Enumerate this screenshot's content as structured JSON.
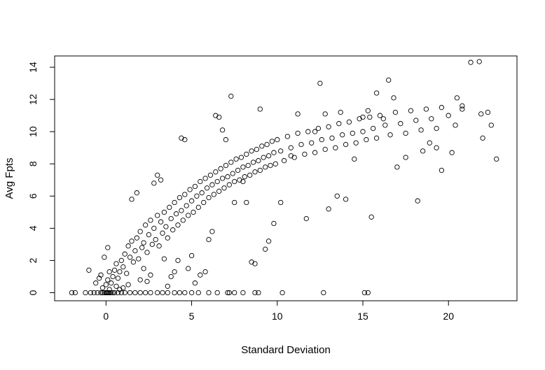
{
  "chart_data": {
    "type": "scatter",
    "title": "",
    "xlabel": "Standard Deviation",
    "ylabel": "Avg Fpts",
    "xlim": [
      -3,
      24
    ],
    "ylim": [
      -0.5,
      14.7
    ],
    "x_ticks": [
      0,
      5,
      10,
      15,
      20
    ],
    "y_ticks": [
      0,
      2,
      4,
      6,
      8,
      10,
      12,
      14
    ],
    "x_tick_labels": [
      "0",
      "5",
      "10",
      "15",
      "20"
    ],
    "y_tick_labels": [
      "0",
      "2",
      "4",
      "6",
      "8",
      "10",
      "12",
      "14"
    ],
    "grid": false,
    "legend": "none",
    "marker": "open-circle",
    "marker_color": "#000000",
    "points": [
      [
        -2.0,
        0
      ],
      [
        -1.8,
        0
      ],
      [
        -1.2,
        0
      ],
      [
        -0.9,
        0
      ],
      [
        -0.7,
        0
      ],
      [
        -0.5,
        0
      ],
      [
        -0.3,
        0
      ],
      [
        -0.2,
        0
      ],
      [
        -0.1,
        0
      ],
      [
        0.0,
        0
      ],
      [
        0.05,
        0
      ],
      [
        0.1,
        0
      ],
      [
        0.15,
        0
      ],
      [
        0.2,
        0
      ],
      [
        0.3,
        0
      ],
      [
        0.4,
        0
      ],
      [
        0.5,
        0
      ],
      [
        0.7,
        0
      ],
      [
        0.9,
        0
      ],
      [
        1.1,
        0
      ],
      [
        1.4,
        0
      ],
      [
        1.7,
        0
      ],
      [
        2.0,
        0
      ],
      [
        2.3,
        0
      ],
      [
        2.6,
        0
      ],
      [
        3.0,
        0
      ],
      [
        3.3,
        0
      ],
      [
        3.6,
        0
      ],
      [
        4.0,
        0
      ],
      [
        4.3,
        0
      ],
      [
        4.6,
        0
      ],
      [
        5.0,
        0
      ],
      [
        5.4,
        0
      ],
      [
        6.0,
        0
      ],
      [
        6.5,
        0
      ],
      [
        7.1,
        0
      ],
      [
        7.2,
        0
      ],
      [
        7.5,
        0
      ],
      [
        8.0,
        0
      ],
      [
        8.7,
        0
      ],
      [
        8.9,
        0
      ],
      [
        10.3,
        0
      ],
      [
        12.7,
        0
      ],
      [
        15.1,
        0
      ],
      [
        15.3,
        0
      ],
      [
        -1.0,
        1.4
      ],
      [
        -0.6,
        0.6
      ],
      [
        -0.4,
        0.9
      ],
      [
        -0.3,
        1.1
      ],
      [
        -0.2,
        0.3
      ],
      [
        0.1,
        2.8
      ],
      [
        -0.1,
        2.2
      ],
      [
        0.2,
        1.3
      ],
      [
        0.0,
        0.5
      ],
      [
        0.1,
        0.8
      ],
      [
        0.2,
        0.2
      ],
      [
        0.3,
        0.6
      ],
      [
        0.4,
        1.0
      ],
      [
        0.5,
        1.4
      ],
      [
        0.6,
        1.8
      ],
      [
        0.7,
        0.9
      ],
      [
        0.8,
        1.3
      ],
      [
        0.9,
        2.0
      ],
      [
        1.0,
        1.6
      ],
      [
        1.1,
        2.4
      ],
      [
        1.2,
        1.2
      ],
      [
        1.3,
        2.9
      ],
      [
        1.4,
        2.2
      ],
      [
        1.5,
        3.2
      ],
      [
        1.6,
        1.9
      ],
      [
        1.7,
        2.6
      ],
      [
        1.8,
        3.4
      ],
      [
        1.9,
        2.1
      ],
      [
        2.0,
        3.8
      ],
      [
        2.1,
        2.8
      ],
      [
        2.2,
        3.1
      ],
      [
        2.3,
        4.2
      ],
      [
        2.4,
        2.5
      ],
      [
        2.5,
        3.6
      ],
      [
        2.6,
        4.5
      ],
      [
        2.7,
        3.0
      ],
      [
        2.8,
        4.0
      ],
      [
        2.9,
        3.3
      ],
      [
        3.0,
        4.8
      ],
      [
        3.1,
        2.9
      ],
      [
        3.2,
        4.4
      ],
      [
        3.3,
        3.7
      ],
      [
        3.4,
        5.0
      ],
      [
        3.5,
        4.1
      ],
      [
        3.6,
        3.4
      ],
      [
        3.7,
        5.3
      ],
      [
        3.8,
        4.6
      ],
      [
        3.9,
        3.9
      ],
      [
        4.0,
        5.6
      ],
      [
        4.1,
        4.9
      ],
      [
        4.2,
        4.2
      ],
      [
        4.3,
        5.9
      ],
      [
        4.4,
        5.1
      ],
      [
        4.5,
        4.5
      ],
      [
        4.6,
        6.1
      ],
      [
        4.7,
        5.4
      ],
      [
        4.8,
        4.8
      ],
      [
        4.9,
        6.4
      ],
      [
        5.0,
        5.7
      ],
      [
        5.1,
        5.0
      ],
      [
        5.2,
        6.6
      ],
      [
        5.3,
        6.0
      ],
      [
        5.4,
        5.3
      ],
      [
        5.5,
        6.9
      ],
      [
        5.6,
        6.2
      ],
      [
        5.7,
        5.6
      ],
      [
        5.8,
        7.1
      ],
      [
        5.9,
        6.5
      ],
      [
        6.0,
        5.9
      ],
      [
        6.1,
        7.3
      ],
      [
        6.2,
        6.7
      ],
      [
        6.3,
        6.1
      ],
      [
        6.4,
        7.5
      ],
      [
        6.5,
        6.9
      ],
      [
        6.6,
        6.3
      ],
      [
        6.7,
        7.7
      ],
      [
        6.8,
        7.1
      ],
      [
        6.9,
        6.5
      ],
      [
        7.0,
        7.9
      ],
      [
        7.1,
        7.2
      ],
      [
        7.2,
        6.7
      ],
      [
        7.3,
        8.1
      ],
      [
        7.4,
        7.4
      ],
      [
        7.5,
        6.9
      ],
      [
        7.6,
        8.3
      ],
      [
        7.7,
        7.6
      ],
      [
        7.8,
        7.0
      ],
      [
        7.9,
        8.4
      ],
      [
        8.0,
        7.8
      ],
      [
        8.1,
        7.2
      ],
      [
        8.2,
        8.6
      ],
      [
        8.3,
        7.9
      ],
      [
        8.4,
        7.3
      ],
      [
        8.5,
        8.8
      ],
      [
        8.6,
        8.1
      ],
      [
        8.7,
        7.5
      ],
      [
        8.8,
        8.9
      ],
      [
        8.9,
        8.2
      ],
      [
        9.0,
        7.6
      ],
      [
        9.1,
        9.1
      ],
      [
        9.2,
        8.4
      ],
      [
        9.3,
        7.8
      ],
      [
        9.4,
        9.2
      ],
      [
        9.5,
        8.5
      ],
      [
        9.6,
        7.9
      ],
      [
        9.7,
        9.4
      ],
      [
        9.8,
        8.7
      ],
      [
        9.9,
        8.0
      ],
      [
        10.0,
        9.5
      ],
      [
        10.2,
        8.8
      ],
      [
        10.4,
        8.2
      ],
      [
        10.6,
        9.7
      ],
      [
        10.8,
        9.0
      ],
      [
        11.0,
        8.4
      ],
      [
        11.2,
        9.9
      ],
      [
        11.4,
        9.2
      ],
      [
        11.6,
        8.6
      ],
      [
        11.8,
        10.0
      ],
      [
        12.0,
        9.3
      ],
      [
        12.2,
        8.7
      ],
      [
        12.4,
        10.2
      ],
      [
        12.6,
        9.5
      ],
      [
        12.8,
        8.9
      ],
      [
        13.0,
        10.3
      ],
      [
        13.2,
        9.6
      ],
      [
        13.4,
        9.0
      ],
      [
        13.6,
        10.5
      ],
      [
        13.8,
        9.8
      ],
      [
        14.0,
        9.2
      ],
      [
        14.2,
        10.6
      ],
      [
        14.4,
        9.9
      ],
      [
        14.6,
        9.3
      ],
      [
        14.8,
        10.8
      ],
      [
        15.0,
        10.0
      ],
      [
        15.2,
        9.5
      ],
      [
        15.4,
        10.9
      ],
      [
        15.6,
        10.2
      ],
      [
        15.8,
        9.6
      ],
      [
        16.0,
        11.0
      ],
      [
        16.3,
        10.4
      ],
      [
        16.6,
        9.8
      ],
      [
        16.9,
        11.2
      ],
      [
        17.2,
        10.5
      ],
      [
        17.5,
        9.9
      ],
      [
        17.8,
        11.3
      ],
      [
        18.1,
        10.7
      ],
      [
        18.4,
        10.1
      ],
      [
        18.7,
        11.4
      ],
      [
        19.0,
        10.8
      ],
      [
        19.3,
        10.2
      ],
      [
        19.6,
        11.5
      ],
      [
        20.0,
        11.0
      ],
      [
        20.4,
        10.4
      ],
      [
        20.8,
        11.6
      ],
      [
        21.3,
        14.3
      ],
      [
        21.8,
        14.35
      ],
      [
        21.9,
        11.1
      ],
      [
        22.0,
        9.6
      ],
      [
        22.3,
        11.2
      ],
      [
        22.5,
        10.4
      ],
      [
        22.8,
        8.3
      ],
      [
        20.8,
        11.4
      ],
      [
        20.5,
        12.1
      ],
      [
        20.2,
        8.7
      ],
      [
        19.6,
        7.6
      ],
      [
        19.3,
        9.0
      ],
      [
        18.9,
        9.3
      ],
      [
        18.5,
        8.8
      ],
      [
        18.2,
        5.7
      ],
      [
        17.5,
        8.4
      ],
      [
        17.0,
        7.8
      ],
      [
        16.8,
        12.1
      ],
      [
        16.5,
        13.2
      ],
      [
        16.2,
        10.8
      ],
      [
        15.8,
        12.4
      ],
      [
        15.5,
        4.7
      ],
      [
        15.3,
        11.3
      ],
      [
        15.0,
        10.9
      ],
      [
        14.5,
        8.3
      ],
      [
        14.0,
        5.8
      ],
      [
        13.7,
        11.2
      ],
      [
        13.5,
        6.0
      ],
      [
        13.0,
        5.2
      ],
      [
        12.8,
        11.1
      ],
      [
        12.5,
        13.0
      ],
      [
        12.2,
        10.0
      ],
      [
        11.7,
        4.6
      ],
      [
        11.2,
        11.1
      ],
      [
        10.8,
        8.5
      ],
      [
        10.2,
        5.6
      ],
      [
        9.8,
        4.3
      ],
      [
        9.5,
        3.2
      ],
      [
        9.3,
        2.7
      ],
      [
        9.0,
        11.4
      ],
      [
        8.7,
        1.8
      ],
      [
        8.5,
        1.9
      ],
      [
        8.2,
        5.6
      ],
      [
        8.0,
        6.9
      ],
      [
        7.5,
        5.6
      ],
      [
        7.3,
        12.2
      ],
      [
        7.0,
        9.5
      ],
      [
        6.8,
        10.1
      ],
      [
        6.6,
        10.9
      ],
      [
        6.4,
        11.0
      ],
      [
        6.2,
        3.8
      ],
      [
        6.0,
        3.3
      ],
      [
        5.8,
        1.3
      ],
      [
        5.5,
        1.1
      ],
      [
        5.2,
        0.6
      ],
      [
        5.0,
        2.3
      ],
      [
        4.8,
        1.5
      ],
      [
        4.6,
        9.5
      ],
      [
        4.4,
        9.6
      ],
      [
        4.2,
        2.0
      ],
      [
        4.0,
        1.3
      ],
      [
        3.8,
        1.0
      ],
      [
        3.6,
        0.4
      ],
      [
        3.4,
        2.1
      ],
      [
        3.2,
        7.0
      ],
      [
        3.0,
        7.3
      ],
      [
        2.8,
        6.8
      ],
      [
        2.6,
        1.1
      ],
      [
        2.4,
        0.7
      ],
      [
        2.2,
        1.5
      ],
      [
        2.0,
        0.8
      ],
      [
        1.8,
        6.2
      ],
      [
        1.5,
        5.8
      ],
      [
        1.3,
        0.5
      ],
      [
        1.0,
        0.3
      ],
      [
        0.8,
        0.2
      ],
      [
        0.6,
        0.4
      ]
    ]
  }
}
